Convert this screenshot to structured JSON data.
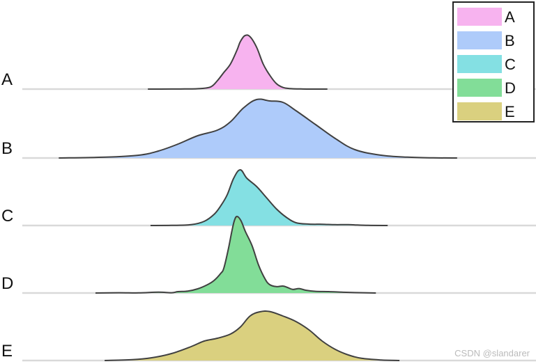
{
  "chart_data": {
    "type": "ridgeline",
    "rows": [
      "A",
      "B",
      "C",
      "D",
      "E"
    ],
    "series": [
      {
        "name": "A",
        "color": "#f7b3ef",
        "points": [
          [
            -13.6,
            0
          ],
          [
            -10,
            0.02
          ],
          [
            -8,
            0.05
          ],
          [
            -5.6,
            0.2
          ],
          [
            -4,
            0.8
          ],
          [
            -3,
            3
          ],
          [
            -2,
            6
          ],
          [
            -1,
            9
          ],
          [
            0,
            14
          ],
          [
            0.5,
            17
          ],
          [
            1.2,
            19.2
          ],
          [
            2,
            18.8
          ],
          [
            3,
            15
          ],
          [
            4,
            9
          ],
          [
            5,
            5
          ],
          [
            6,
            2
          ],
          [
            7,
            0.6
          ],
          [
            8,
            0.2
          ],
          [
            10,
            0.04
          ],
          [
            12,
            0.01
          ],
          [
            13.8,
            0
          ]
        ]
      },
      {
        "name": "B",
        "color": "#aecbfa",
        "points": [
          [
            -27.2,
            0
          ],
          [
            -20,
            0.3
          ],
          [
            -15,
            1
          ],
          [
            -12,
            2.5
          ],
          [
            -9,
            5
          ],
          [
            -6,
            8
          ],
          [
            -3,
            10
          ],
          [
            -1,
            13
          ],
          [
            1,
            18
          ],
          [
            3,
            21
          ],
          [
            5,
            20.5
          ],
          [
            7,
            20
          ],
          [
            9,
            17
          ],
          [
            12,
            12
          ],
          [
            15,
            7
          ],
          [
            18,
            3
          ],
          [
            22,
            1
          ],
          [
            26,
            0.3
          ],
          [
            30,
            0.05
          ],
          [
            33.6,
            0
          ]
        ]
      },
      {
        "name": "C",
        "color": "#84e0e3",
        "points": [
          [
            -13.2,
            0
          ],
          [
            -10,
            0.05
          ],
          [
            -7,
            0.3
          ],
          [
            -5,
            1.5
          ],
          [
            -3.5,
            4
          ],
          [
            -2.5,
            7
          ],
          [
            -1.5,
            11
          ],
          [
            -0.5,
            17
          ],
          [
            0.5,
            20
          ],
          [
            1.5,
            17
          ],
          [
            3,
            14
          ],
          [
            4.5,
            10
          ],
          [
            6,
            6
          ],
          [
            7.5,
            3
          ],
          [
            9,
            1
          ],
          [
            11,
            0.5
          ],
          [
            13,
            0.45
          ],
          [
            15,
            0.3
          ],
          [
            17,
            0.3
          ],
          [
            20,
            0.05
          ],
          [
            23,
            0
          ]
        ]
      },
      {
        "name": "D",
        "color": "#82dd98",
        "points": [
          [
            -21.6,
            0
          ],
          [
            -18,
            0.1
          ],
          [
            -15,
            0.05
          ],
          [
            -12,
            0.3
          ],
          [
            -10,
            0.1
          ],
          [
            -9,
            0.5
          ],
          [
            -7.5,
            0.7
          ],
          [
            -6,
            1.5
          ],
          [
            -4.5,
            3
          ],
          [
            -3.5,
            4.5
          ],
          [
            -2.5,
            7
          ],
          [
            -2,
            9
          ],
          [
            -1.3,
            16
          ],
          [
            -0.8,
            22
          ],
          [
            -0.4,
            26
          ],
          [
            0,
            27.5
          ],
          [
            0.6,
            26
          ],
          [
            1.3,
            22
          ],
          [
            2.3,
            17
          ],
          [
            3.3,
            10
          ],
          [
            4.3,
            5
          ],
          [
            5,
            3
          ],
          [
            6,
            2.3
          ],
          [
            7,
            2.5
          ],
          [
            7.7,
            2
          ],
          [
            8.5,
            1.3
          ],
          [
            9.5,
            1.6
          ],
          [
            10.5,
            1
          ],
          [
            12,
            0.6
          ],
          [
            14,
            0.5
          ],
          [
            16,
            0.3
          ],
          [
            18,
            0.15
          ],
          [
            21.2,
            0
          ]
        ]
      },
      {
        "name": "E",
        "color": "#dad07f",
        "points": [
          [
            -20.2,
            0
          ],
          [
            -16,
            0.3
          ],
          [
            -13,
            1
          ],
          [
            -10,
            2.5
          ],
          [
            -7,
            5
          ],
          [
            -5,
            7
          ],
          [
            -3,
            8
          ],
          [
            -1,
            9.5
          ],
          [
            0.5,
            12
          ],
          [
            2,
            16
          ],
          [
            3.5,
            17.5
          ],
          [
            5,
            17.6
          ],
          [
            7,
            16
          ],
          [
            9,
            14
          ],
          [
            11,
            11
          ],
          [
            13,
            7
          ],
          [
            15,
            4
          ],
          [
            17,
            2
          ],
          [
            19,
            0.8
          ],
          [
            22,
            0.2
          ],
          [
            24.8,
            0
          ]
        ]
      }
    ],
    "legend": {
      "position": "top-right",
      "entries": [
        "A",
        "B",
        "C",
        "D",
        "E"
      ]
    },
    "x_range": [
      -28,
      34
    ],
    "grid": false
  },
  "watermark": "CSDN @slandarer"
}
